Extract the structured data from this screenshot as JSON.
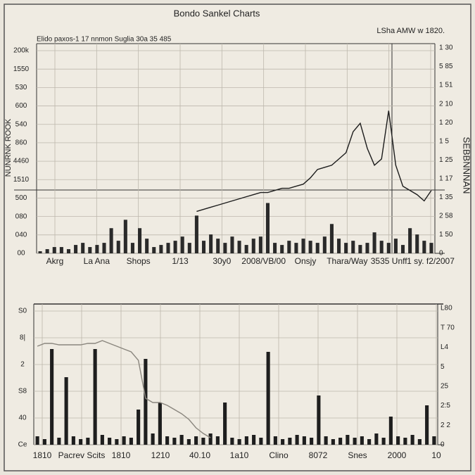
{
  "chart_data": [
    {
      "type": "price-volume",
      "title": "Bondo Sankel Charts",
      "subtitle": "Elido paxos-1 17 nnmon Suglia 30a 35 485",
      "note": "LSha AMW w 1820.",
      "ylabel": "NUNRNK ROOK",
      "y2label": "SEBBNNNAN",
      "ytick_labels": [
        "200k",
        "1550",
        "530",
        "600",
        "540",
        "860",
        "4460",
        "1510",
        "500",
        "080",
        "040",
        "00"
      ],
      "y2tick_labels": [
        "1 30",
        "5 85",
        "1 51",
        "2 10",
        "1 20",
        "1 5",
        "1 25",
        "1 17",
        "1 35",
        "2 58",
        "1 50",
        "0"
      ],
      "xtick_labels": [
        "Akrg",
        "La Ana",
        "Shops",
        "1/13",
        "30y0",
        "2008/VB/00",
        "Onsjy",
        "Thara/Way",
        "3535 Unff",
        "1 sy. f2/2007"
      ],
      "ylim": [
        0,
        100
      ],
      "price_color": "#1c1c1c",
      "price_values": [
        null,
        null,
        null,
        null,
        null,
        null,
        null,
        null,
        null,
        null,
        null,
        null,
        null,
        null,
        null,
        null,
        null,
        null,
        null,
        null,
        null,
        null,
        20,
        21,
        22,
        23,
        24,
        25,
        26,
        27,
        28,
        29,
        29,
        30,
        31,
        31,
        32,
        33,
        36,
        40,
        41,
        42,
        45,
        48,
        58,
        62,
        50,
        42,
        45,
        68,
        42,
        32,
        30,
        28,
        25,
        30
      ],
      "volume_color": "#2a2a2a",
      "volume_values": [
        1,
        2,
        3,
        3,
        2,
        4,
        5,
        3,
        4,
        5,
        12,
        6,
        16,
        5,
        12,
        7,
        3,
        4,
        5,
        6,
        8,
        5,
        18,
        6,
        9,
        7,
        5,
        8,
        6,
        4,
        7,
        8,
        24,
        5,
        4,
        6,
        5,
        7,
        6,
        5,
        8,
        14,
        7,
        5,
        6,
        4,
        5,
        10,
        6,
        5,
        7,
        4,
        12,
        9,
        6,
        5
      ]
    },
    {
      "type": "price-volume",
      "ytick_labels": [
        "S0",
        "8|",
        "2",
        "S8",
        "40",
        "Ce"
      ],
      "y2tick_labels": [
        "L80",
        "T 70",
        "L4",
        "5",
        "25",
        "2:5",
        "2 2",
        "0"
      ],
      "xtick_labels": [
        "1810",
        "Pacrev Scits",
        "1810",
        "1210",
        "40.10",
        "1a10",
        "Clino",
        "8072",
        "Snes",
        "2000",
        "10"
      ],
      "ylim": [
        0,
        100
      ],
      "price_color": "#8a867e",
      "price_values": [
        70,
        72,
        72,
        71,
        71,
        71,
        71,
        72,
        72,
        74,
        72,
        70,
        68,
        66,
        60,
        33,
        30,
        30,
        28,
        25,
        22,
        18,
        12,
        8,
        5,
        null,
        null,
        null,
        null,
        null,
        null,
        null,
        null,
        null,
        null,
        null,
        null,
        null,
        null,
        null,
        null,
        null,
        null,
        null,
        null,
        null,
        null,
        null,
        null,
        null,
        null,
        null,
        null,
        null,
        null,
        null
      ],
      "volume_color": "#1e1e1e",
      "volume_values": [
        6,
        4,
        68,
        5,
        48,
        6,
        4,
        5,
        68,
        7,
        5,
        4,
        6,
        5,
        25,
        61,
        8,
        30,
        6,
        5,
        7,
        4,
        6,
        5,
        8,
        6,
        30,
        5,
        4,
        6,
        7,
        5,
        66,
        6,
        4,
        5,
        7,
        6,
        5,
        35,
        6,
        4,
        5,
        7,
        5,
        6,
        4,
        8,
        5,
        20,
        6,
        5,
        7,
        4,
        28,
        6
      ]
    }
  ]
}
